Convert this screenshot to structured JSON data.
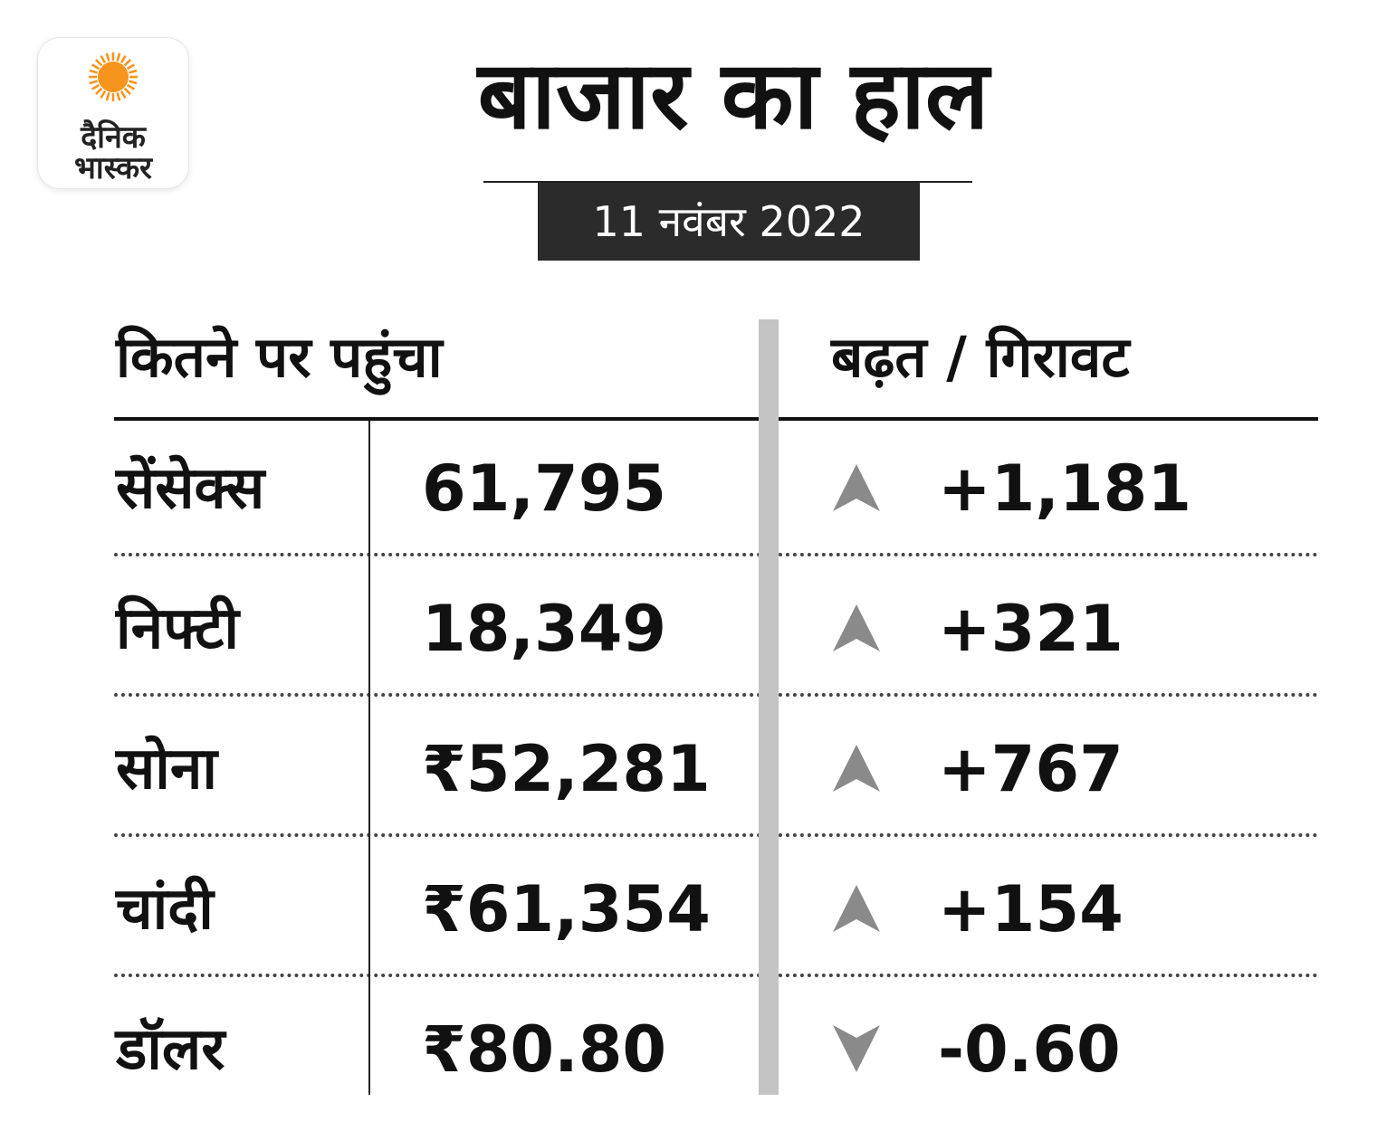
{
  "brand": {
    "line1": "दैनिक",
    "line2": "भास्कर",
    "sun_color": "#f7941d"
  },
  "title": "बाजार का हाल",
  "date": "11 नवंबर 2022",
  "chart_data": {
    "type": "table",
    "title": "बाजार का हाल",
    "subtitle": "11 नवंबर 2022",
    "columns": [
      "कितने पर पहुंचा",
      "बढ़त / गिरावट"
    ],
    "rows": [
      {
        "name": "सेंसेक्स",
        "value": "61,795",
        "change": "+1,181",
        "direction": "up"
      },
      {
        "name": "निफ्टी",
        "value": "18,349",
        "change": "+321",
        "direction": "up"
      },
      {
        "name": "सोना",
        "value": "₹52,281",
        "change": "+767",
        "direction": "up"
      },
      {
        "name": "चांदी",
        "value": "₹61,354",
        "change": "+154",
        "direction": "up"
      },
      {
        "name": "डॉलर",
        "value": "₹80.80",
        "change": "-0.60",
        "direction": "down"
      }
    ],
    "arrow_color": "#8a8a8a"
  }
}
